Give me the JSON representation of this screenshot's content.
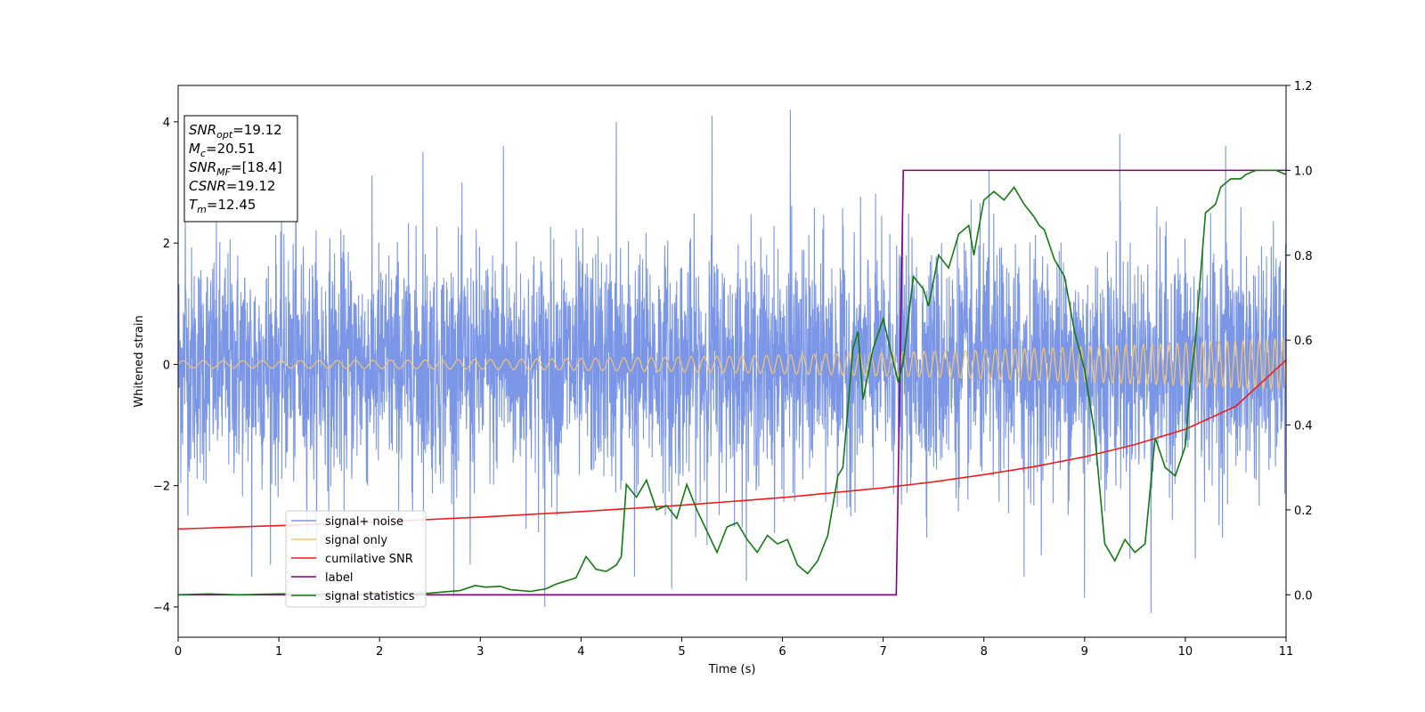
{
  "chart_data": {
    "type": "line",
    "xlabel": "Time (s)",
    "ylabel": "Whitened strain",
    "xlim": [
      0,
      11
    ],
    "ylim": [
      -4.5,
      4.6
    ],
    "ylim_right": [
      -0.1,
      1.2
    ],
    "x_ticks": [
      "0",
      "1",
      "2",
      "3",
      "4",
      "5",
      "6",
      "7",
      "8",
      "9",
      "10",
      "11"
    ],
    "y_ticks": [
      "−4",
      "−2",
      "0",
      "2",
      "4"
    ],
    "y_ticks_right": [
      "0.0",
      "0.2",
      "0.4",
      "0.6",
      "0.8",
      "1.0",
      "1.2"
    ],
    "grid": false,
    "legend_position": "lower-left",
    "annotation": {
      "lines": [
        {
          "base": "SNR",
          "sub": "opt",
          "value": "=19.12"
        },
        {
          "base": "M",
          "sub": "c",
          "value": "=20.51"
        },
        {
          "base": "SNR",
          "sub": "MF",
          "value": "=[18.4]"
        },
        {
          "base": "CSNR",
          "sub": "",
          "value": "=19.12"
        },
        {
          "base": "T",
          "sub": "m",
          "value": "=12.45"
        }
      ]
    },
    "series": [
      {
        "name": "signal+ noise",
        "axis": "left",
        "color": "#7b96e6",
        "kind": "noise",
        "std": 0.95,
        "spike_max": 4.2,
        "spike_min": -4.1,
        "peaks": [
          [
            0.07,
            2.6
          ],
          [
            1.17,
            3.4
          ],
          [
            2.43,
            3.5
          ],
          [
            3.23,
            3.6
          ],
          [
            4.35,
            4.0
          ],
          [
            5.3,
            4.1
          ],
          [
            6.08,
            4.2
          ],
          [
            8.05,
            3.2
          ],
          [
            9.35,
            3.8
          ],
          [
            10.4,
            3.6
          ]
        ],
        "troughs": [
          [
            0.73,
            -3.5
          ],
          [
            2.9,
            -3.3
          ],
          [
            3.64,
            -4.0
          ],
          [
            4.53,
            -3.5
          ],
          [
            4.9,
            -3.7
          ],
          [
            8.4,
            -3.5
          ],
          [
            9.0,
            -3.85
          ],
          [
            9.66,
            -4.1
          ],
          [
            10.1,
            -3.2
          ]
        ]
      },
      {
        "name": "signal only",
        "axis": "left",
        "color": "#f5c46b",
        "kind": "chirp",
        "amplitude_start": 0.06,
        "amplitude_end": 0.42,
        "frequency_start_hz": 5,
        "frequency_end_hz": 13
      },
      {
        "name": "cumilative SNR",
        "axis": "right",
        "color": "#ee1c1c",
        "x": [
          0,
          1,
          2,
          3,
          4,
          5,
          6,
          7,
          7.5,
          8,
          8.5,
          9,
          9.5,
          10,
          10.5,
          11
        ],
        "y": [
          0.155,
          0.163,
          0.172,
          0.183,
          0.196,
          0.211,
          0.229,
          0.252,
          0.266,
          0.283,
          0.302,
          0.325,
          0.354,
          0.39,
          0.444,
          0.553
        ]
      },
      {
        "name": "label",
        "axis": "right",
        "color": "#800080",
        "x": [
          0,
          7.13,
          7.2,
          11
        ],
        "y": [
          0,
          0,
          1,
          1
        ]
      },
      {
        "name": "signal statistics",
        "axis": "right",
        "color": "#117a11",
        "x": [
          0,
          0.3,
          0.6,
          1.0,
          1.5,
          2.0,
          2.5,
          2.8,
          2.95,
          3.05,
          3.2,
          3.3,
          3.5,
          3.65,
          3.75,
          3.95,
          4.05,
          4.15,
          4.25,
          4.35,
          4.4,
          4.45,
          4.55,
          4.65,
          4.75,
          4.85,
          4.95,
          5.05,
          5.15,
          5.25,
          5.35,
          5.45,
          5.55,
          5.65,
          5.75,
          5.85,
          5.95,
          6.05,
          6.15,
          6.25,
          6.35,
          6.45,
          6.55,
          6.6,
          6.7,
          6.75,
          6.8,
          6.9,
          7.0,
          7.05,
          7.15,
          7.2,
          7.3,
          7.4,
          7.45,
          7.55,
          7.65,
          7.75,
          7.85,
          7.9,
          8.0,
          8.1,
          8.2,
          8.3,
          8.4,
          8.5,
          8.55,
          8.6,
          8.7,
          8.8,
          8.9,
          9.0,
          9.1,
          9.2,
          9.3,
          9.4,
          9.5,
          9.6,
          9.7,
          9.8,
          9.9,
          10.0,
          10.05,
          10.1,
          10.2,
          10.3,
          10.35,
          10.45,
          10.55,
          10.6,
          10.7,
          10.8,
          10.9,
          11.0
        ],
        "y": [
          0.0,
          0.002,
          0.0,
          0.002,
          0.001,
          0.003,
          0.004,
          0.01,
          0.022,
          0.018,
          0.02,
          0.012,
          0.008,
          0.014,
          0.025,
          0.04,
          0.09,
          0.06,
          0.055,
          0.07,
          0.09,
          0.26,
          0.23,
          0.27,
          0.2,
          0.21,
          0.18,
          0.26,
          0.2,
          0.15,
          0.1,
          0.16,
          0.17,
          0.13,
          0.1,
          0.14,
          0.12,
          0.13,
          0.07,
          0.05,
          0.08,
          0.14,
          0.28,
          0.3,
          0.58,
          0.62,
          0.46,
          0.58,
          0.65,
          0.6,
          0.5,
          0.55,
          0.75,
          0.72,
          0.68,
          0.8,
          0.77,
          0.85,
          0.87,
          0.8,
          0.93,
          0.95,
          0.93,
          0.96,
          0.92,
          0.89,
          0.87,
          0.86,
          0.79,
          0.75,
          0.62,
          0.53,
          0.38,
          0.12,
          0.08,
          0.13,
          0.1,
          0.12,
          0.37,
          0.3,
          0.28,
          0.35,
          0.5,
          0.6,
          0.9,
          0.92,
          0.96,
          0.98,
          0.98,
          0.99,
          1.0,
          1.0,
          1.0,
          0.99
        ]
      }
    ]
  }
}
